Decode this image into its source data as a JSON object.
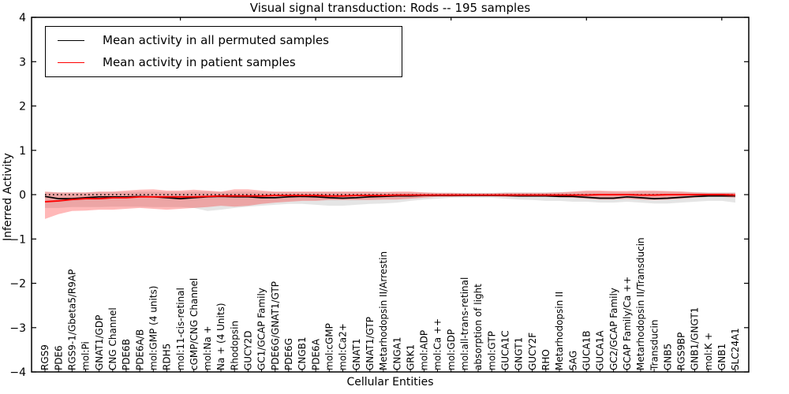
{
  "figure": {
    "title": "Visual signal transduction: Rods -- 195 samples",
    "xlabel": "Cellular Entities",
    "ylabel": "Inferred Activity"
  },
  "legend": {
    "entries": [
      {
        "label": "Mean activity in all permuted samples",
        "color": "#000000"
      },
      {
        "label": "Mean activity in patient samples",
        "color": "#ff0000"
      }
    ]
  },
  "chart_data": {
    "type": "line",
    "title": "Visual signal transduction: Rods -- 195 samples",
    "xlabel": "Cellular Entities",
    "ylabel": "Inferred Activity",
    "ylim": [
      -4,
      4
    ],
    "yticks": [
      4,
      3,
      2,
      1,
      0,
      -1,
      -2,
      -3,
      -4
    ],
    "grid": false,
    "legend_position": "upper left",
    "zero_line_style": "dotted",
    "colors": {
      "permuted_line": "#000000",
      "patient_line": "#ff0000",
      "permuted_band": "rgba(0,0,0,0.10)",
      "patient_band": "rgba(255,0,0,0.28)"
    },
    "categories": [
      "RGS9",
      "PDE6",
      "RGS9-1/Gbeta5/R9AP",
      "mol:Pi",
      "GNAT1/GDP",
      "CNG Channel",
      "PDE6B",
      "PDE6A/B",
      "mol:GMP (4 units)",
      "RDH5",
      "mol:11-cis-retinal",
      "cGMP/CNG Channel",
      "mol:Na +",
      "Na + (4 Units)",
      "Rhodopsin",
      "GUCY2D",
      "GC1/GCAP Family",
      "PDE6G/GNAT1/GTP",
      "PDE6G",
      "CNGB1",
      "PDE6A",
      "mol:cGMP",
      "mol:Ca2+",
      "GNAT1",
      "GNAT1/GTP",
      "Metarhodopsin II/Arrestin",
      "CNGA1",
      "GRK1",
      "mol:ADP",
      "mol:Ca ++",
      "mol:GDP",
      "mol:all-trans-retinal",
      "absorption of light",
      "mol:GTP",
      "GUCA1C",
      "GNGT1",
      "GUCY2F",
      "RHO",
      "Metarhodopsin II",
      "SAG",
      "GUCA1B",
      "GUCA1A",
      "GC2/GCAP Family",
      "GCAP Family/Ca ++",
      "Metarhodopsin II/Transducin",
      "Transducin",
      "GNB5",
      "RGS9BP",
      "GNB1/GNGT1",
      "mol:K +",
      "GNB1",
      "SLC24A1"
    ],
    "series": [
      {
        "name": "Mean activity in all permuted samples",
        "values": [
          -0.04,
          -0.09,
          -0.09,
          -0.07,
          -0.05,
          -0.05,
          -0.05,
          -0.04,
          -0.05,
          -0.07,
          -0.09,
          -0.07,
          -0.05,
          -0.04,
          -0.05,
          -0.05,
          -0.07,
          -0.07,
          -0.05,
          -0.04,
          -0.05,
          -0.07,
          -0.08,
          -0.07,
          -0.05,
          -0.04,
          -0.03,
          -0.03,
          -0.02,
          -0.02,
          -0.02,
          -0.02,
          -0.02,
          -0.02,
          -0.02,
          -0.03,
          -0.03,
          -0.03,
          -0.04,
          -0.04,
          -0.06,
          -0.08,
          -0.08,
          -0.05,
          -0.07,
          -0.09,
          -0.08,
          -0.06,
          -0.04,
          -0.03,
          -0.03,
          -0.03
        ],
        "band_upper": [
          0.06,
          0.05,
          0.05,
          0.05,
          0.06,
          0.06,
          0.06,
          0.07,
          0.07,
          0.06,
          0.06,
          0.07,
          0.07,
          0.06,
          0.07,
          0.07,
          0.06,
          0.06,
          0.06,
          0.06,
          0.06,
          0.06,
          0.06,
          0.06,
          0.06,
          0.06,
          0.05,
          0.05,
          0.05,
          0.04,
          0.04,
          0.04,
          0.04,
          0.04,
          0.05,
          0.05,
          0.05,
          0.05,
          0.06,
          0.06,
          0.07,
          0.07,
          0.07,
          0.06,
          0.07,
          0.07,
          0.07,
          0.07,
          0.06,
          0.05,
          0.05,
          0.05
        ],
        "band_lower": [
          -0.3,
          -0.3,
          -0.28,
          -0.28,
          -0.28,
          -0.27,
          -0.27,
          -0.27,
          -0.28,
          -0.28,
          -0.28,
          -0.3,
          -0.37,
          -0.34,
          -0.3,
          -0.27,
          -0.25,
          -0.23,
          -0.21,
          -0.21,
          -0.23,
          -0.25,
          -0.25,
          -0.23,
          -0.21,
          -0.2,
          -0.18,
          -0.14,
          -0.11,
          -0.09,
          -0.07,
          -0.07,
          -0.07,
          -0.07,
          -0.09,
          -0.11,
          -0.12,
          -0.14,
          -0.14,
          -0.16,
          -0.16,
          -0.18,
          -0.18,
          -0.16,
          -0.18,
          -0.2,
          -0.2,
          -0.18,
          -0.16,
          -0.14,
          -0.14,
          -0.18
        ]
      },
      {
        "name": "Mean activity in patient samples",
        "values": [
          -0.16,
          -0.14,
          -0.11,
          -0.09,
          -0.09,
          -0.07,
          -0.07,
          -0.05,
          -0.05,
          -0.05,
          -0.05,
          -0.05,
          -0.04,
          -0.03,
          -0.03,
          -0.03,
          -0.03,
          -0.02,
          -0.02,
          -0.02,
          -0.02,
          -0.03,
          -0.03,
          -0.02,
          -0.02,
          -0.02,
          -0.01,
          -0.01,
          -0.01,
          -0.01,
          -0.01,
          -0.01,
          -0.01,
          -0.01,
          -0.01,
          -0.01,
          -0.01,
          -0.01,
          -0.01,
          -0.01,
          -0.01,
          0,
          0,
          0,
          -0.01,
          -0.01,
          0,
          0,
          0,
          0,
          0,
          -0.01
        ],
        "band_upper": [
          0.07,
          0.05,
          0.05,
          0.05,
          0.07,
          0.07,
          0.09,
          0.11,
          0.12,
          0.09,
          0.09,
          0.11,
          0.09,
          0.07,
          0.12,
          0.12,
          0.09,
          0.07,
          0.07,
          0.07,
          0.07,
          0.07,
          0.07,
          0.07,
          0.07,
          0.06,
          0.07,
          0.07,
          0.05,
          0.04,
          0.04,
          0.03,
          0.03,
          0.03,
          0.04,
          0.04,
          0.04,
          0.04,
          0.05,
          0.07,
          0.09,
          0.09,
          0.08,
          0.08,
          0.09,
          0.09,
          0.08,
          0.07,
          0.05,
          0.04,
          0.04,
          0.04
        ],
        "band_lower": [
          -0.55,
          -0.44,
          -0.37,
          -0.36,
          -0.34,
          -0.34,
          -0.32,
          -0.3,
          -0.32,
          -0.34,
          -0.32,
          -0.3,
          -0.28,
          -0.25,
          -0.27,
          -0.25,
          -0.21,
          -0.18,
          -0.16,
          -0.14,
          -0.14,
          -0.12,
          -0.12,
          -0.12,
          -0.12,
          -0.11,
          -0.11,
          -0.09,
          -0.07,
          -0.05,
          -0.05,
          -0.04,
          -0.04,
          -0.04,
          -0.05,
          -0.05,
          -0.05,
          -0.05,
          -0.06,
          -0.07,
          -0.09,
          -0.11,
          -0.11,
          -0.09,
          -0.11,
          -0.12,
          -0.11,
          -0.09,
          -0.07,
          -0.05,
          -0.05,
          -0.07
        ]
      }
    ]
  }
}
